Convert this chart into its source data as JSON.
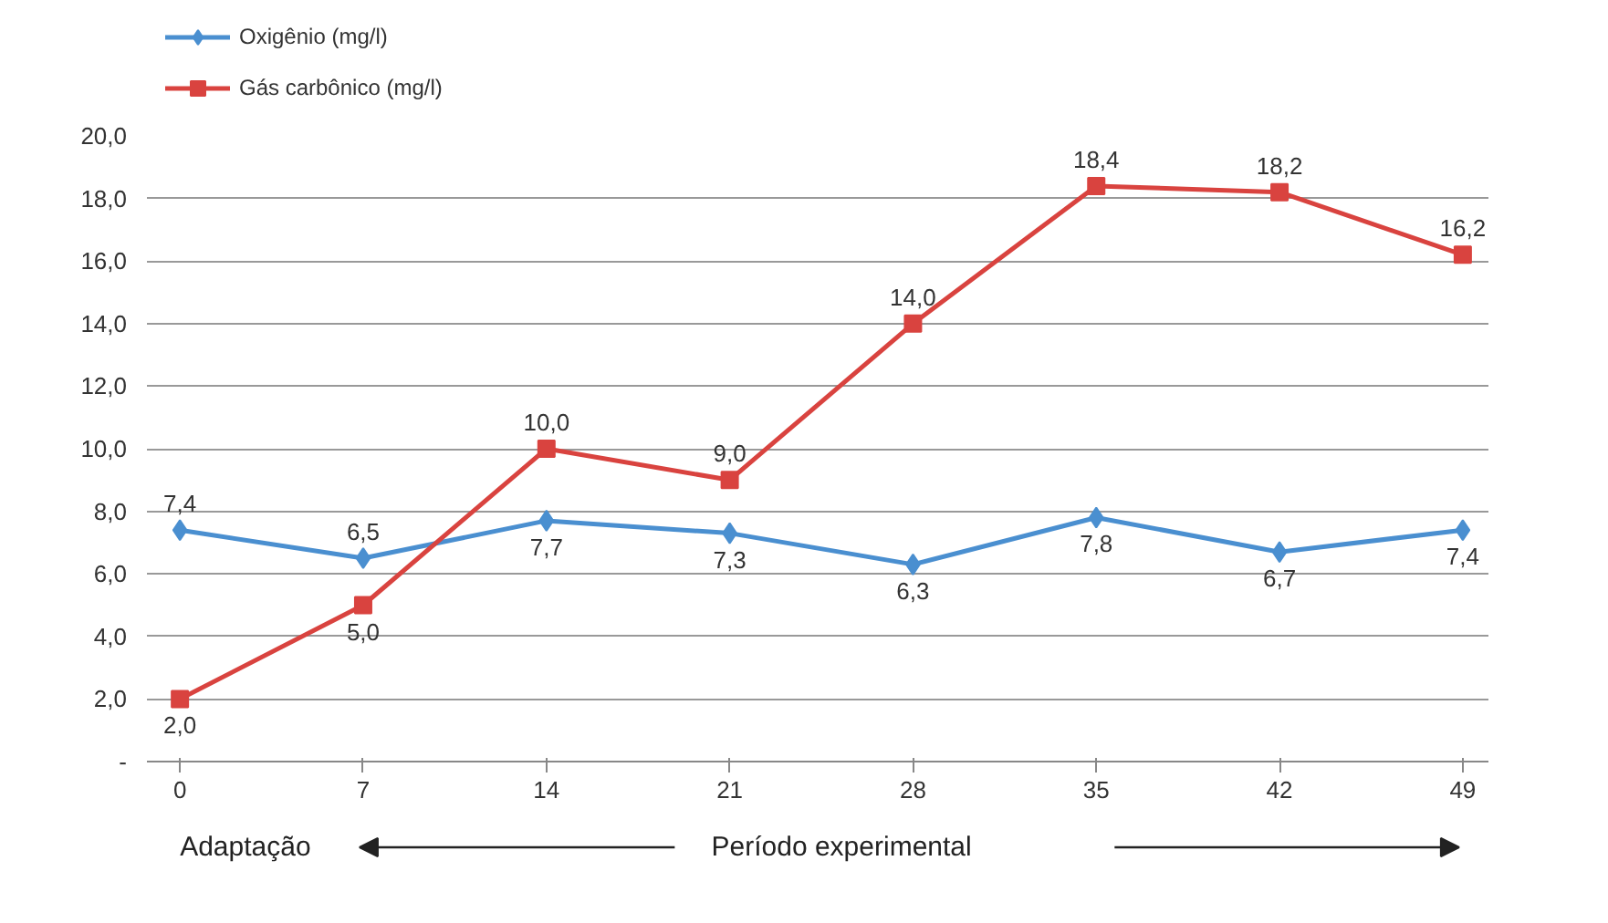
{
  "chart_data": {
    "type": "line",
    "categories": [
      "0",
      "7",
      "14",
      "21",
      "28",
      "35",
      "42",
      "49"
    ],
    "series": [
      {
        "name": "Oxigênio (mg/l)",
        "color": "#4a8fd0",
        "marker": "diamond",
        "values": [
          7.4,
          6.5,
          7.7,
          7.3,
          6.3,
          7.8,
          6.7,
          7.4
        ],
        "value_labels": [
          "7,4",
          "6,5",
          "7,7",
          "7,3",
          "6,3",
          "7,8",
          "6,7",
          "7,4"
        ]
      },
      {
        "name": "Gás carbônico (mg/l)",
        "color": "#d9433f",
        "marker": "square",
        "values": [
          2.0,
          5.0,
          10.0,
          9.0,
          14.0,
          18.4,
          18.2,
          16.2
        ],
        "value_labels": [
          "2,0",
          "5,0",
          "10,0",
          "9,0",
          "14,0",
          "18,4",
          "18,2",
          "16,2"
        ]
      }
    ],
    "ylim": [
      0,
      20
    ],
    "yticks": [
      {
        "value": 0,
        "label": "-"
      },
      {
        "value": 2,
        "label": "2,0"
      },
      {
        "value": 4,
        "label": "4,0"
      },
      {
        "value": 6,
        "label": "6,0"
      },
      {
        "value": 8,
        "label": "8,0"
      },
      {
        "value": 10,
        "label": "10,0"
      },
      {
        "value": 12,
        "label": "12,0"
      },
      {
        "value": 14,
        "label": "14,0"
      },
      {
        "value": 16,
        "label": "16,0"
      },
      {
        "value": 18,
        "label": "18,0"
      },
      {
        "value": 20,
        "label": "20,0"
      }
    ],
    "grid": "y",
    "legend": "top left",
    "line_style": "solid",
    "annotations": [
      "Adaptação",
      "Período experimental"
    ]
  }
}
